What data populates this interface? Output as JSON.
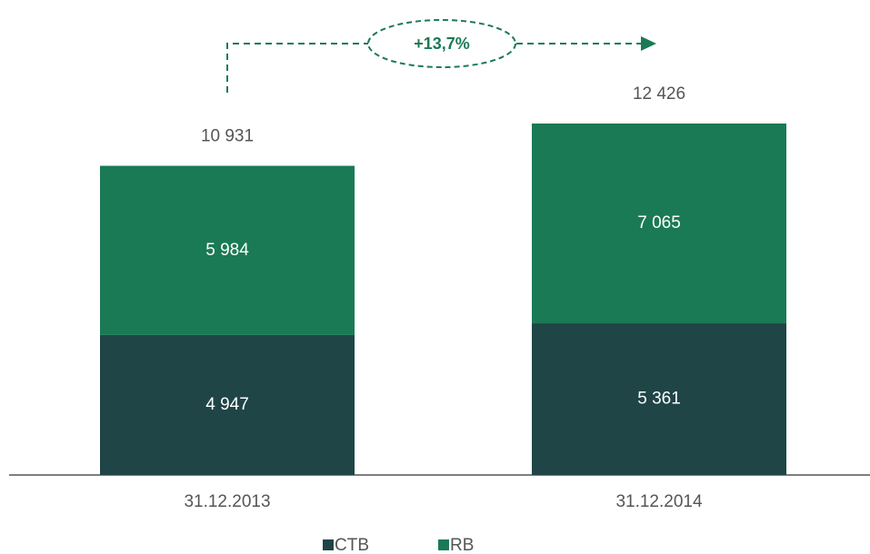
{
  "chart_data": {
    "type": "stacked_bar",
    "categories": [
      "31.12.2013",
      "31.12.2014"
    ],
    "series": [
      {
        "name": "CTB",
        "color": "#1f4547",
        "values": [
          4947,
          5361
        ],
        "value_labels": [
          "4 947",
          "5 361"
        ]
      },
      {
        "name": "RB",
        "color": "#1a7a55",
        "values": [
          5984,
          7065
        ],
        "value_labels": [
          "5 984",
          "7 065"
        ]
      }
    ],
    "totals": [
      10931,
      12426
    ],
    "total_labels": [
      "10 931",
      "12 426"
    ],
    "annotation": "+13,7%"
  }
}
